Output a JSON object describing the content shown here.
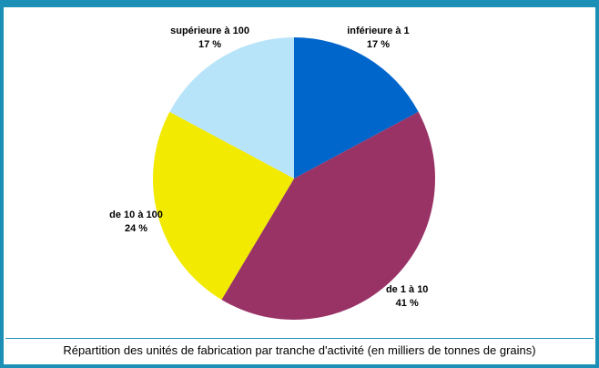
{
  "chart_data": {
    "type": "pie",
    "caption": "Répartition des unités de fabrication par tranche d'activité (en milliers de tonnes de grains)",
    "categories": [
      "inférieure à 1",
      "de 1 à 10",
      "de 10 à 100",
      "supérieure à 100"
    ],
    "values": [
      17,
      41,
      24,
      17
    ],
    "value_labels": [
      "17 %",
      "41 %",
      "24 %",
      "17 %"
    ],
    "colors": [
      "#0066cc",
      "#993366",
      "#f2ea00",
      "#b8e4fa"
    ]
  }
}
